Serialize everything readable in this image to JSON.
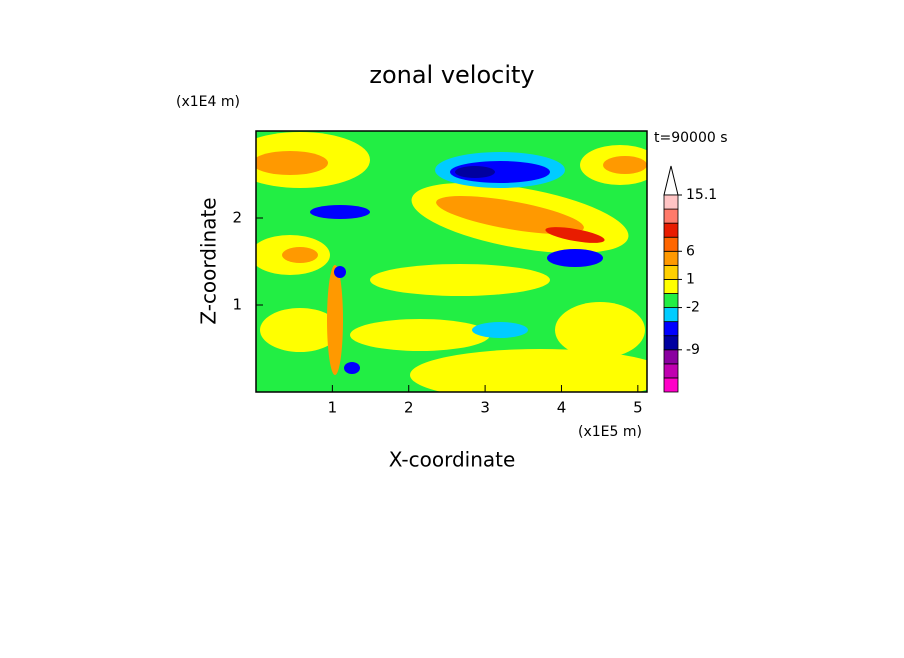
{
  "chart_data": {
    "type": "contour",
    "title": "zonal velocity",
    "x_label": "X-coordinate",
    "y_label": "Z-coordinate",
    "x_unit": "(x1E5 m)",
    "y_unit": "(x1E4 m)",
    "annotation": "t=90000 s",
    "xlim": [
      0,
      5.12
    ],
    "ylim": [
      0,
      3
    ],
    "xticks": [
      1,
      2,
      3,
      4,
      5
    ],
    "yticks": [
      1,
      2
    ],
    "colorbar": {
      "colors": [
        "#ff00c8",
        "#c000b0",
        "#8a00a0",
        "#0000a0",
        "#0000ff",
        "#00ccff",
        "#22ee44",
        "#ffff00",
        "#ffd000",
        "#ff9900",
        "#ff6600",
        "#e81c00",
        "#ff7a6a",
        "#ffc4c4"
      ],
      "levels": [
        -18,
        -15,
        -12,
        -9,
        -6,
        -4,
        -2,
        -1,
        1,
        3,
        6,
        9,
        11,
        13,
        15.1
      ],
      "ticks": [
        15.1,
        6,
        1,
        -2,
        -9
      ]
    }
  }
}
